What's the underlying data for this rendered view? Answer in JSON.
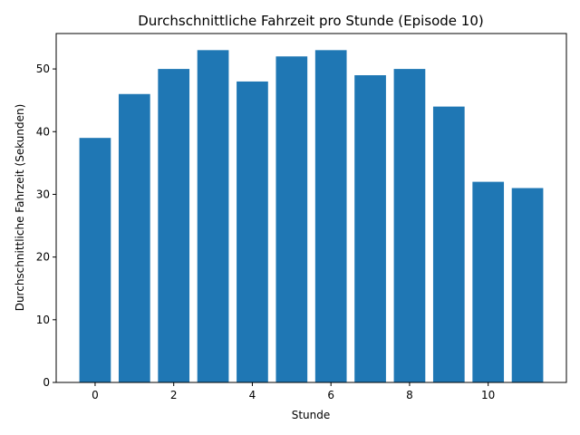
{
  "chart_data": {
    "type": "bar",
    "title": "Durchschnittliche Fahrzeit pro Stunde (Episode 10)",
    "xlabel": "Stunde",
    "ylabel": "Durchschnittliche Fahrzeit (Sekunden)",
    "x": [
      0,
      1,
      2,
      3,
      4,
      5,
      6,
      7,
      8,
      9,
      10,
      11
    ],
    "values": [
      39,
      46,
      50,
      53,
      48,
      52,
      53,
      49,
      50,
      44,
      32,
      31
    ],
    "xlim": [
      -0.99,
      11.99
    ],
    "ylim": [
      0,
      55.65
    ],
    "xticks": [
      0,
      2,
      4,
      6,
      8,
      10
    ],
    "yticks": [
      0,
      10,
      20,
      30,
      40,
      50
    ],
    "bar_color": "#1f77b4",
    "grid": false,
    "legend": "none"
  }
}
